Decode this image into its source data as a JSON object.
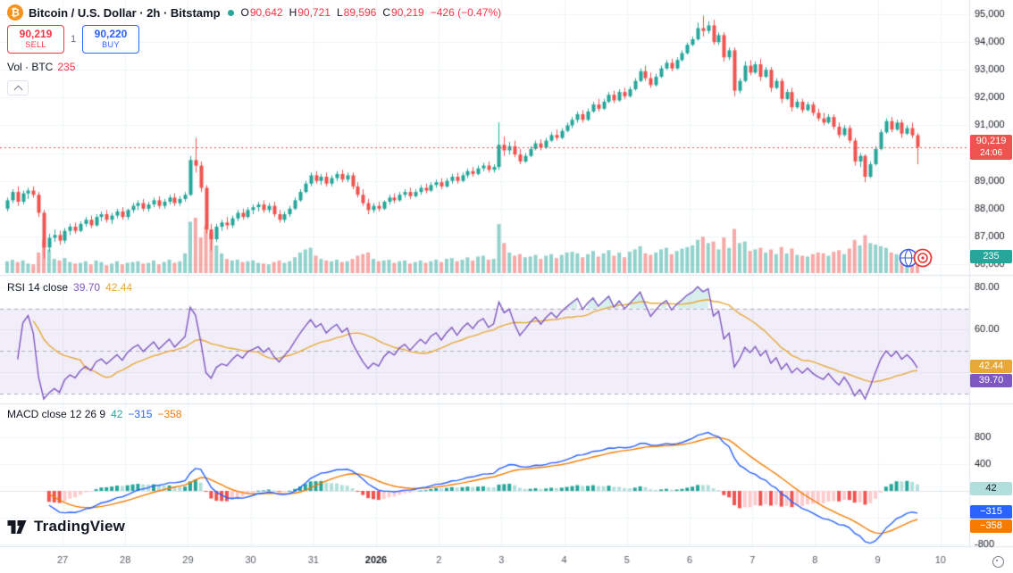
{
  "header": {
    "symbol_icon": "₿",
    "symbol": "Bitcoin / U.S. Dollar · 2h · Bitstamp",
    "ohlc": {
      "o_label": "O",
      "o": "90,642",
      "h_label": "H",
      "h": "90,721",
      "l_label": "L",
      "l": "89,596",
      "c_label": "C",
      "c": "90,219",
      "change": "−426 (−0.47%)"
    },
    "sell_price": "90,219",
    "sell_label": "SELL",
    "qty": "1",
    "buy_price": "90,220",
    "buy_label": "BUY",
    "vol_label": "Vol · BTC",
    "vol_value": "235"
  },
  "rsi_legend": {
    "title": "RSI 14 close",
    "value": "39.70",
    "ma_value": "42.44"
  },
  "macd_legend": {
    "title": "MACD close 12 26 9",
    "hist": "42",
    "macd": "−315",
    "signal": "−358"
  },
  "badges": {
    "price": "90,219",
    "countdown": "24:06",
    "volume": "235",
    "rsi_ma": "42.44",
    "rsi": "39.70",
    "macd_hist": "42",
    "macd": "−315",
    "macd_signal": "−358"
  },
  "logo_text": "TradingView",
  "colors": {
    "up": "#26a69a",
    "down": "#ef5350",
    "vol_up": "rgba(38,166,154,0.5)",
    "vol_down": "rgba(239,83,80,0.5)",
    "rsi": "#7e57c2",
    "rsi_ma": "#e8a838",
    "rsi_band": "rgba(126,87,194,0.1)",
    "macd": "#2962ff",
    "macd_signal": "#f57c00",
    "hist_up_strong": "#26a69a",
    "hist_up_weak": "#b2dfdb",
    "hist_dn_strong": "#ef5350",
    "hist_dn_weak": "#fccbcd",
    "grid": "#f0f3fa",
    "separator": "#e0e3eb",
    "axis_text": "#131722",
    "time_text": "#5d606b",
    "sell": "#f23645",
    "buy": "#2962ff"
  },
  "chart_data": {
    "type": "candlestick",
    "symbol": "Bitcoin / U.S. Dollar",
    "interval": "2h",
    "exchange": "Bitstamp",
    "ohlc_current": {
      "open": 90642,
      "high": 90721,
      "low": 89596,
      "close": 90219,
      "change": -426,
      "change_pct": -0.47
    },
    "volume": {
      "current": 235,
      "unit": "BTC"
    },
    "price_axis": {
      "min": 86000,
      "max": 95000,
      "step": 1000
    },
    "time_axis_labels": [
      "27",
      "28",
      "29",
      "30",
      "31",
      "2026",
      "2",
      "3",
      "4",
      "5",
      "6",
      "7",
      "8",
      "9",
      "10"
    ],
    "indicators": {
      "rsi": {
        "length": 14,
        "source": "close",
        "last": 39.7,
        "ma_last": 42.44,
        "overbought": 70,
        "middle": 50,
        "oversold": 30,
        "axis_ticks": [
          80,
          60
        ]
      },
      "macd": {
        "fast": 12,
        "slow": 26,
        "signal_len": 9,
        "source": "close",
        "hist_last": 42,
        "macd_last": -315,
        "signal_last": -358,
        "axis_ticks": [
          800,
          400,
          -800
        ]
      }
    },
    "candles": [
      [
        88000,
        88400,
        87900,
        88300,
        150
      ],
      [
        88300,
        88700,
        88200,
        88600,
        170
      ],
      [
        88600,
        88800,
        88100,
        88250,
        140
      ],
      [
        88250,
        88650,
        88150,
        88550,
        160
      ],
      [
        88550,
        88750,
        88350,
        88650,
        120
      ],
      [
        88650,
        88800,
        88400,
        88500,
        110
      ],
      [
        88500,
        88600,
        87700,
        87850,
        260
      ],
      [
        87850,
        87950,
        86200,
        86600,
        420
      ],
      [
        86600,
        87100,
        86450,
        86950,
        300
      ],
      [
        86950,
        87250,
        86800,
        87050,
        180
      ],
      [
        87050,
        87200,
        86700,
        86850,
        160
      ],
      [
        86850,
        87300,
        86750,
        87200,
        190
      ],
      [
        87200,
        87450,
        87050,
        87350,
        140
      ],
      [
        87350,
        87500,
        87100,
        87200,
        120
      ],
      [
        87200,
        87550,
        87150,
        87450,
        130
      ],
      [
        87450,
        87700,
        87350,
        87600,
        150
      ],
      [
        87600,
        87750,
        87300,
        87400,
        110
      ],
      [
        87400,
        87800,
        87350,
        87700,
        160
      ],
      [
        87700,
        87900,
        87550,
        87800,
        140
      ],
      [
        87800,
        87950,
        87500,
        87600,
        100
      ],
      [
        87600,
        87850,
        87450,
        87750,
        120
      ],
      [
        87750,
        88000,
        87650,
        87900,
        150
      ],
      [
        87900,
        88050,
        87600,
        87700,
        110
      ],
      [
        87700,
        88000,
        87600,
        87950,
        130
      ],
      [
        87950,
        88200,
        87850,
        88100,
        140
      ],
      [
        88100,
        88300,
        87950,
        88200,
        150
      ],
      [
        88200,
        88350,
        87900,
        88000,
        120
      ],
      [
        88000,
        88250,
        87900,
        88150,
        130
      ],
      [
        88150,
        88400,
        88050,
        88300,
        160
      ],
      [
        88300,
        88450,
        88000,
        88100,
        110
      ],
      [
        88100,
        88350,
        88000,
        88250,
        140
      ],
      [
        88250,
        88500,
        88150,
        88400,
        170
      ],
      [
        88400,
        88550,
        88100,
        88200,
        130
      ],
      [
        88200,
        88450,
        88100,
        88350,
        150
      ],
      [
        88350,
        88600,
        88250,
        88500,
        250
      ],
      [
        88500,
        89900,
        88450,
        89750,
        650
      ],
      [
        89750,
        90550,
        89300,
        89550,
        700
      ],
      [
        89550,
        89700,
        88600,
        88750,
        450
      ],
      [
        88750,
        88850,
        87100,
        87250,
        600
      ],
      [
        87250,
        87450,
        86500,
        86900,
        500
      ],
      [
        86900,
        87450,
        86800,
        87350,
        350
      ],
      [
        87350,
        87600,
        87200,
        87500,
        250
      ],
      [
        87500,
        87700,
        87250,
        87400,
        180
      ],
      [
        87400,
        87750,
        87300,
        87650,
        160
      ],
      [
        87650,
        87950,
        87550,
        87850,
        170
      ],
      [
        87850,
        88000,
        87600,
        87700,
        140
      ],
      [
        87700,
        88050,
        87650,
        87950,
        150
      ],
      [
        87950,
        88150,
        87800,
        88050,
        160
      ],
      [
        88050,
        88250,
        87900,
        88150,
        130
      ],
      [
        88150,
        88300,
        87850,
        87950,
        120
      ],
      [
        87950,
        88200,
        87850,
        88100,
        110
      ],
      [
        88100,
        88250,
        87700,
        87800,
        140
      ],
      [
        87800,
        87950,
        87500,
        87600,
        160
      ],
      [
        87600,
        87900,
        87500,
        87800,
        130
      ],
      [
        87800,
        88100,
        87700,
        88000,
        150
      ],
      [
        88000,
        88400,
        87950,
        88300,
        200
      ],
      [
        88300,
        88700,
        88250,
        88600,
        260
      ],
      [
        88600,
        89000,
        88550,
        88900,
        300
      ],
      [
        88900,
        89300,
        88800,
        89200,
        320
      ],
      [
        89200,
        89350,
        88900,
        89000,
        220
      ],
      [
        89000,
        89250,
        88850,
        89150,
        180
      ],
      [
        89150,
        89300,
        88800,
        88900,
        160
      ],
      [
        88900,
        89200,
        88800,
        89100,
        150
      ],
      [
        89100,
        89350,
        89000,
        89250,
        170
      ],
      [
        89250,
        89400,
        88950,
        89050,
        140
      ],
      [
        89050,
        89300,
        88950,
        89200,
        150
      ],
      [
        89200,
        89300,
        88700,
        88800,
        180
      ],
      [
        88800,
        88950,
        88400,
        88500,
        220
      ],
      [
        88500,
        88700,
        88100,
        88200,
        240
      ],
      [
        88200,
        88350,
        87800,
        87950,
        260
      ],
      [
        87950,
        88200,
        87850,
        88100,
        180
      ],
      [
        88100,
        88250,
        87900,
        88000,
        150
      ],
      [
        88000,
        88300,
        87950,
        88250,
        160
      ],
      [
        88250,
        88500,
        88150,
        88400,
        170
      ],
      [
        88400,
        88550,
        88200,
        88300,
        130
      ],
      [
        88300,
        88600,
        88250,
        88500,
        150
      ],
      [
        88500,
        88700,
        88400,
        88600,
        160
      ],
      [
        88600,
        88750,
        88350,
        88450,
        120
      ],
      [
        88450,
        88700,
        88400,
        88600,
        140
      ],
      [
        88600,
        88850,
        88500,
        88750,
        160
      ],
      [
        88750,
        88900,
        88550,
        88650,
        130
      ],
      [
        88650,
        88950,
        88600,
        88850,
        150
      ],
      [
        88850,
        89050,
        88750,
        88950,
        170
      ],
      [
        88950,
        89100,
        88700,
        88800,
        140
      ],
      [
        88800,
        89100,
        88750,
        89000,
        180
      ],
      [
        89000,
        89250,
        88900,
        89150,
        190
      ],
      [
        89150,
        89300,
        88900,
        89000,
        150
      ],
      [
        89000,
        89300,
        88950,
        89200,
        170
      ],
      [
        89200,
        89450,
        89100,
        89350,
        200
      ],
      [
        89350,
        89500,
        89150,
        89250,
        160
      ],
      [
        89250,
        89550,
        89200,
        89450,
        210
      ],
      [
        89450,
        89650,
        89350,
        89550,
        220
      ],
      [
        89550,
        89700,
        89300,
        89400,
        170
      ],
      [
        89400,
        89600,
        89300,
        89500,
        180
      ],
      [
        89500,
        91100,
        89400,
        90300,
        620
      ],
      [
        90300,
        90600,
        89900,
        90100,
        380
      ],
      [
        90100,
        90400,
        89950,
        90250,
        260
      ],
      [
        90250,
        90450,
        89850,
        89950,
        220
      ],
      [
        89950,
        90150,
        89600,
        89700,
        240
      ],
      [
        89700,
        90000,
        89650,
        89900,
        200
      ],
      [
        89900,
        90250,
        89850,
        90150,
        210
      ],
      [
        90150,
        90450,
        90100,
        90350,
        230
      ],
      [
        90350,
        90500,
        90100,
        90200,
        180
      ],
      [
        90200,
        90550,
        90150,
        90450,
        220
      ],
      [
        90450,
        90750,
        90400,
        90650,
        240
      ],
      [
        90650,
        90850,
        90450,
        90550,
        190
      ],
      [
        90550,
        90900,
        90500,
        90800,
        230
      ],
      [
        90800,
        91100,
        90750,
        91000,
        260
      ],
      [
        91000,
        91300,
        90900,
        91200,
        270
      ],
      [
        91200,
        91500,
        91100,
        91400,
        250
      ],
      [
        91400,
        91550,
        91100,
        91200,
        200
      ],
      [
        91200,
        91600,
        91150,
        91500,
        240
      ],
      [
        91500,
        91850,
        91450,
        91750,
        280
      ],
      [
        91750,
        91950,
        91500,
        91600,
        210
      ],
      [
        91600,
        91950,
        91550,
        91850,
        250
      ],
      [
        91850,
        92200,
        91800,
        92100,
        290
      ],
      [
        92100,
        92250,
        91800,
        91900,
        220
      ],
      [
        91900,
        92300,
        91850,
        92200,
        260
      ],
      [
        92200,
        92350,
        91950,
        92050,
        200
      ],
      [
        92050,
        92400,
        92000,
        92300,
        270
      ],
      [
        92300,
        92700,
        92250,
        92600,
        300
      ],
      [
        92600,
        93050,
        92550,
        92950,
        340
      ],
      [
        92950,
        93150,
        92600,
        92700,
        250
      ],
      [
        92700,
        92900,
        92350,
        92450,
        230
      ],
      [
        92450,
        92850,
        92400,
        92750,
        260
      ],
      [
        92750,
        93150,
        92700,
        93050,
        300
      ],
      [
        93050,
        93350,
        93000,
        93250,
        320
      ],
      [
        93250,
        93400,
        92950,
        93050,
        240
      ],
      [
        93050,
        93450,
        93000,
        93350,
        280
      ],
      [
        93350,
        93700,
        93300,
        93600,
        310
      ],
      [
        93600,
        93980,
        93550,
        93900,
        330
      ],
      [
        93900,
        94200,
        93850,
        94100,
        350
      ],
      [
        94100,
        94700,
        94050,
        94500,
        420
      ],
      [
        94500,
        94950,
        94200,
        94400,
        460
      ],
      [
        94400,
        94750,
        94300,
        94600,
        380
      ],
      [
        94600,
        94800,
        93900,
        94000,
        400
      ],
      [
        94000,
        94350,
        93900,
        94250,
        300
      ],
      [
        94250,
        94350,
        93300,
        93450,
        450
      ],
      [
        93450,
        93800,
        93350,
        93700,
        320
      ],
      [
        93700,
        93800,
        92050,
        92250,
        560
      ],
      [
        92250,
        92700,
        92150,
        92600,
        380
      ],
      [
        92600,
        93300,
        92550,
        93150,
        400
      ],
      [
        93150,
        93350,
        92800,
        92900,
        280
      ],
      [
        92900,
        93300,
        92850,
        93200,
        300
      ],
      [
        93200,
        93400,
        92600,
        92750,
        320
      ],
      [
        92750,
        93100,
        92700,
        93000,
        260
      ],
      [
        93000,
        93100,
        92200,
        92350,
        300
      ],
      [
        92350,
        92700,
        92300,
        92600,
        240
      ],
      [
        92600,
        92700,
        91800,
        91950,
        330
      ],
      [
        91950,
        92300,
        91900,
        92200,
        250
      ],
      [
        92200,
        92350,
        91500,
        91650,
        310
      ],
      [
        91650,
        91950,
        91600,
        91850,
        230
      ],
      [
        91850,
        91950,
        91450,
        91550,
        220
      ],
      [
        91550,
        91850,
        91500,
        91750,
        210
      ],
      [
        91750,
        91850,
        91350,
        91450,
        240
      ],
      [
        91450,
        91600,
        91150,
        91250,
        260
      ],
      [
        91250,
        91450,
        91000,
        91100,
        250
      ],
      [
        91100,
        91400,
        91050,
        91300,
        220
      ],
      [
        91300,
        91400,
        90850,
        90950,
        270
      ],
      [
        90950,
        91100,
        90550,
        90650,
        290
      ],
      [
        90650,
        91000,
        90600,
        90900,
        240
      ],
      [
        90900,
        91000,
        90350,
        90450,
        310
      ],
      [
        90450,
        90550,
        89550,
        89700,
        420
      ],
      [
        89700,
        90000,
        89500,
        89900,
        350
      ],
      [
        89900,
        89950,
        88950,
        89150,
        480
      ],
      [
        89150,
        89700,
        89100,
        89600,
        380
      ],
      [
        89600,
        90250,
        89550,
        90150,
        360
      ],
      [
        90150,
        90850,
        90100,
        90750,
        340
      ],
      [
        90750,
        91250,
        90700,
        91150,
        320
      ],
      [
        91150,
        91300,
        90750,
        90850,
        260
      ],
      [
        90850,
        91200,
        90800,
        91100,
        240
      ],
      [
        91100,
        91200,
        90550,
        90700,
        250
      ],
      [
        90700,
        91000,
        90650,
        90900,
        220
      ],
      [
        90900,
        91100,
        90550,
        90642,
        230
      ],
      [
        90642,
        90721,
        89596,
        90219,
        235
      ]
    ]
  }
}
